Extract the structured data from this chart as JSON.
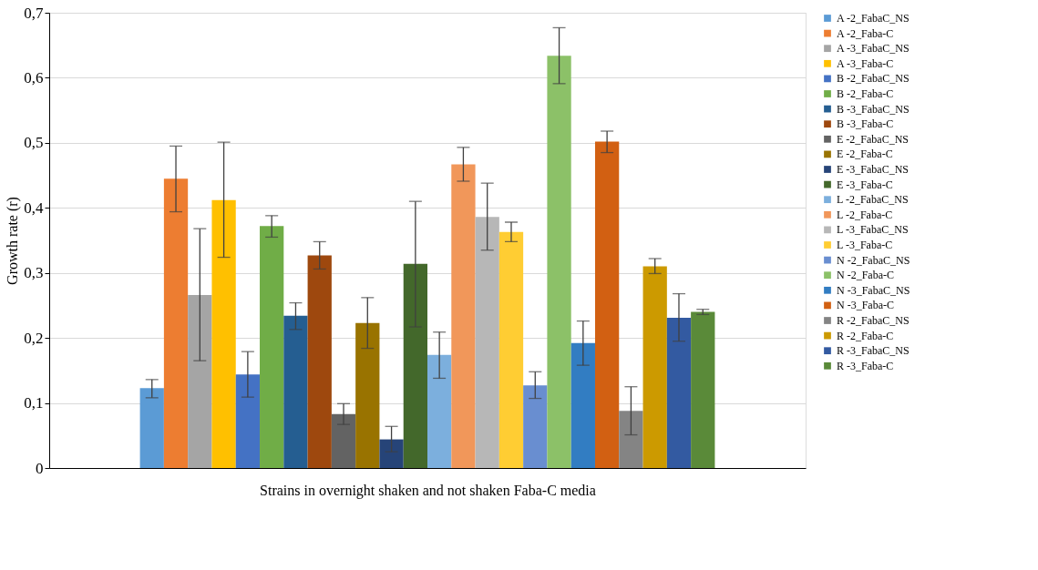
{
  "chart_data": {
    "type": "bar",
    "xlabel": "Strains in overnight shaken and not shaken Faba-C media",
    "ylabel": "Growth rate (r)",
    "categories": [
      null
    ],
    "ylim": [
      0,
      0.7
    ],
    "yticks": [
      0,
      {
        "value": 0.1,
        "label": "0,1"
      },
      {
        "value": 0.2,
        "label": "0,2"
      },
      {
        "value": 0.3,
        "label": "0,3"
      },
      {
        "value": 0.4,
        "label": "0,4"
      },
      {
        "value": 0.5,
        "label": "0,5"
      },
      {
        "value": 0.6,
        "label": "0,6"
      },
      {
        "value": 0.7,
        "label": "0,7"
      }
    ],
    "grid": "y",
    "legend": "right",
    "series": [
      {
        "name": "A -2_FabaC_NS",
        "color": "#5b9bd5",
        "values": [
          0.123
        ],
        "errors": [
          [
            0.108,
            0.136
          ]
        ]
      },
      {
        "name": "A -2_Faba-C",
        "color": "#ed7d31",
        "values": [
          0.445
        ],
        "errors": [
          [
            0.394,
            0.495
          ]
        ]
      },
      {
        "name": "A -3_FabaC_NS",
        "color": "#a5a5a5",
        "values": [
          0.266
        ],
        "errors": [
          [
            0.165,
            0.368
          ]
        ]
      },
      {
        "name": "A -3_Faba-C",
        "color": "#ffc000",
        "values": [
          0.412
        ],
        "errors": [
          [
            0.324,
            0.501
          ]
        ]
      },
      {
        "name": "B -2_FabaC_NS",
        "color": "#4472c4",
        "values": [
          0.144
        ],
        "errors": [
          [
            0.109,
            0.179
          ]
        ]
      },
      {
        "name": "B -2_Faba-C",
        "color": "#70ad47",
        "values": [
          0.372
        ],
        "errors": [
          [
            0.355,
            0.388
          ]
        ]
      },
      {
        "name": "B -3_FabaC_NS",
        "color": "#255e91",
        "values": [
          0.234
        ],
        "errors": [
          [
            0.213,
            0.254
          ]
        ]
      },
      {
        "name": "B -3_Faba-C",
        "color": "#9e480e",
        "values": [
          0.327
        ],
        "errors": [
          [
            0.306,
            0.348
          ]
        ]
      },
      {
        "name": "E -2_FabaC_NS",
        "color": "#636363",
        "values": [
          0.083
        ],
        "errors": [
          [
            0.067,
            0.099
          ]
        ]
      },
      {
        "name": "E -2_Faba-C",
        "color": "#997300",
        "values": [
          0.223
        ],
        "errors": [
          [
            0.184,
            0.262
          ]
        ]
      },
      {
        "name": "E -3_FabaC_NS",
        "color": "#264478",
        "values": [
          0.044
        ],
        "errors": [
          [
            0.025,
            0.064
          ]
        ]
      },
      {
        "name": "E -3_Faba-C",
        "color": "#43682b",
        "values": [
          0.314
        ],
        "errors": [
          [
            0.217,
            0.41
          ]
        ]
      },
      {
        "name": "L -2_FabaC_NS",
        "color": "#7cafdd",
        "values": [
          0.174
        ],
        "errors": [
          [
            0.138,
            0.209
          ]
        ]
      },
      {
        "name": "L -2_Faba-C",
        "color": "#f1975a",
        "values": [
          0.467
        ],
        "errors": [
          [
            0.441,
            0.493
          ]
        ]
      },
      {
        "name": "L -3_FabaC_NS",
        "color": "#b7b7b7",
        "values": [
          0.386
        ],
        "errors": [
          [
            0.335,
            0.438
          ]
        ]
      },
      {
        "name": "L -3_Faba-C",
        "color": "#ffcd33",
        "values": [
          0.363
        ],
        "errors": [
          [
            0.348,
            0.378
          ]
        ]
      },
      {
        "name": "N -2_FabaC_NS",
        "color": "#698ed0",
        "values": [
          0.127
        ],
        "errors": [
          [
            0.107,
            0.148
          ]
        ]
      },
      {
        "name": "N -2_Faba-C",
        "color": "#8cc168",
        "values": [
          0.634
        ],
        "errors": [
          [
            0.591,
            0.677
          ]
        ]
      },
      {
        "name": "N -3_FabaC_NS",
        "color": "#327dc2",
        "values": [
          0.192
        ],
        "errors": [
          [
            0.158,
            0.226
          ]
        ]
      },
      {
        "name": "N -3_Faba-C",
        "color": "#d26012",
        "values": [
          0.502
        ],
        "errors": [
          [
            0.485,
            0.518
          ]
        ]
      },
      {
        "name": "R -2_FabaC_NS",
        "color": "#848484",
        "values": [
          0.088
        ],
        "errors": [
          [
            0.051,
            0.125
          ]
        ]
      },
      {
        "name": "R -2_Faba-C",
        "color": "#cc9a00",
        "values": [
          0.31
        ],
        "errors": [
          [
            0.299,
            0.322
          ]
        ]
      },
      {
        "name": "R -3_FabaC_NS",
        "color": "#335aa1",
        "values": [
          0.231
        ],
        "errors": [
          [
            0.195,
            0.268
          ]
        ]
      },
      {
        "name": "R -3_Faba-C",
        "color": "#5a8a39",
        "values": [
          0.24
        ],
        "errors": [
          [
            0.236,
            0.244
          ]
        ]
      }
    ]
  }
}
